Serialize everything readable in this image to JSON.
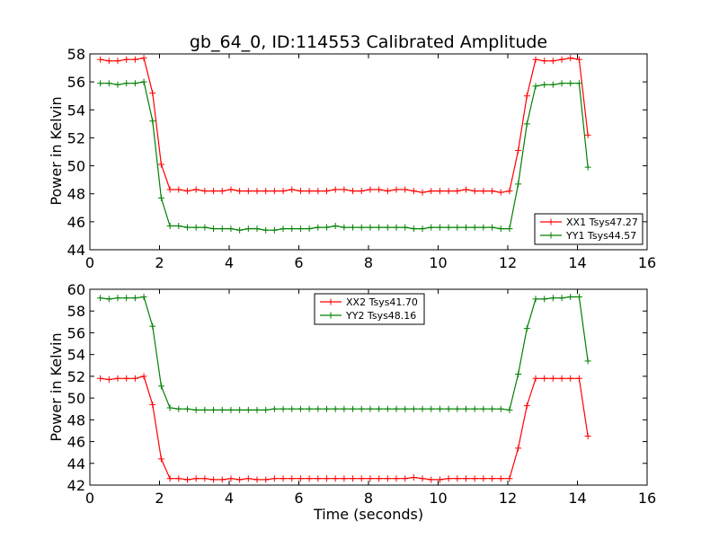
{
  "chart_data": [
    {
      "type": "line",
      "title": "gb_64_0, ID:114553 Calibrated Amplitude",
      "xlabel": "",
      "ylabel": "Power in Kelvin",
      "xlim": [
        0,
        16
      ],
      "ylim": [
        44,
        58
      ],
      "xticks": [
        "0",
        "2",
        "4",
        "6",
        "8",
        "10",
        "12",
        "14",
        "16"
      ],
      "yticks": [
        "44",
        "46",
        "48",
        "50",
        "52",
        "54",
        "56",
        "58"
      ],
      "grid": false,
      "legend_position": "lower-right",
      "x": [
        0.3,
        0.55,
        0.8,
        1.05,
        1.3,
        1.55,
        1.8,
        2.05,
        2.3,
        2.55,
        2.8,
        3.05,
        3.3,
        3.55,
        3.8,
        4.05,
        4.3,
        4.55,
        4.8,
        5.05,
        5.3,
        5.55,
        5.8,
        6.05,
        6.3,
        6.55,
        6.8,
        7.05,
        7.3,
        7.55,
        7.8,
        8.05,
        8.3,
        8.55,
        8.8,
        9.05,
        9.3,
        9.55,
        9.8,
        10.05,
        10.3,
        10.55,
        10.8,
        11.05,
        11.3,
        11.55,
        11.8,
        12.05,
        12.3,
        12.55,
        12.8,
        13.05,
        13.3,
        13.55,
        13.8,
        14.05,
        14.3,
        14.55,
        14.8,
        15.05
      ],
      "series": [
        {
          "name": "XX1 Tsys47.27",
          "color": "#ff0000",
          "values": [
            57.6,
            57.5,
            57.5,
            57.6,
            57.6,
            57.7,
            55.2,
            50.1,
            48.3,
            48.3,
            48.2,
            48.3,
            48.2,
            48.2,
            48.2,
            48.3,
            48.2,
            48.2,
            48.2,
            48.2,
            48.2,
            48.2,
            48.3,
            48.2,
            48.2,
            48.2,
            48.2,
            48.3,
            48.3,
            48.2,
            48.2,
            48.3,
            48.3,
            48.2,
            48.3,
            48.3,
            48.2,
            48.1,
            48.2,
            48.2,
            48.2,
            48.2,
            48.3,
            48.2,
            48.2,
            48.2,
            48.1,
            48.2,
            51.1,
            55.0,
            57.6,
            57.5,
            57.5,
            57.6,
            57.7,
            57.6,
            52.2,
            null,
            null,
            null
          ]
        },
        {
          "name": "YY1 Tsys44.57",
          "color": "#008000",
          "values": [
            55.9,
            55.9,
            55.8,
            55.9,
            55.9,
            56.0,
            53.2,
            47.7,
            45.7,
            45.7,
            45.6,
            45.6,
            45.6,
            45.5,
            45.5,
            45.5,
            45.4,
            45.5,
            45.5,
            45.4,
            45.4,
            45.5,
            45.5,
            45.5,
            45.5,
            45.6,
            45.6,
            45.7,
            45.6,
            45.6,
            45.6,
            45.6,
            45.6,
            45.6,
            45.6,
            45.6,
            45.5,
            45.5,
            45.6,
            45.6,
            45.6,
            45.6,
            45.6,
            45.6,
            45.6,
            45.6,
            45.5,
            45.5,
            48.7,
            53.0,
            55.7,
            55.8,
            55.8,
            55.9,
            55.9,
            55.9,
            49.9,
            null,
            null,
            null
          ]
        }
      ]
    },
    {
      "type": "line",
      "title": "",
      "xlabel": "Time (seconds)",
      "ylabel": "Power in Kelvin",
      "xlim": [
        0,
        16
      ],
      "ylim": [
        42,
        60
      ],
      "xticks": [
        "0",
        "2",
        "4",
        "6",
        "8",
        "10",
        "12",
        "14",
        "16"
      ],
      "yticks": [
        "42",
        "44",
        "46",
        "48",
        "50",
        "52",
        "54",
        "56",
        "58",
        "60"
      ],
      "grid": false,
      "legend_position": "upper-center",
      "x": [
        0.3,
        0.55,
        0.8,
        1.05,
        1.3,
        1.55,
        1.8,
        2.05,
        2.3,
        2.55,
        2.8,
        3.05,
        3.3,
        3.55,
        3.8,
        4.05,
        4.3,
        4.55,
        4.8,
        5.05,
        5.3,
        5.55,
        5.8,
        6.05,
        6.3,
        6.55,
        6.8,
        7.05,
        7.3,
        7.55,
        7.8,
        8.05,
        8.3,
        8.55,
        8.8,
        9.05,
        9.3,
        9.55,
        9.8,
        10.05,
        10.3,
        10.55,
        10.8,
        11.05,
        11.3,
        11.55,
        11.8,
        12.05,
        12.3,
        12.55,
        12.8,
        13.05,
        13.3,
        13.55,
        13.8,
        14.05,
        14.3,
        14.55,
        14.8,
        15.05
      ],
      "series": [
        {
          "name": "XX2 Tsys41.70",
          "color": "#ff0000",
          "values": [
            51.8,
            51.7,
            51.8,
            51.8,
            51.8,
            52.0,
            49.4,
            44.4,
            42.6,
            42.6,
            42.5,
            42.6,
            42.6,
            42.5,
            42.5,
            42.6,
            42.5,
            42.6,
            42.5,
            42.5,
            42.6,
            42.6,
            42.6,
            42.6,
            42.6,
            42.6,
            42.6,
            42.6,
            42.6,
            42.6,
            42.6,
            42.6,
            42.6,
            42.6,
            42.6,
            42.6,
            42.7,
            42.6,
            42.5,
            42.5,
            42.6,
            42.6,
            42.6,
            42.6,
            42.6,
            42.6,
            42.6,
            42.6,
            45.4,
            49.3,
            51.8,
            51.8,
            51.8,
            51.8,
            51.8,
            51.8,
            46.5,
            null,
            null,
            null
          ]
        },
        {
          "name": "YY2 Tsys48.16",
          "color": "#008000",
          "values": [
            59.2,
            59.1,
            59.2,
            59.2,
            59.2,
            59.3,
            56.6,
            51.1,
            49.1,
            49.0,
            49.0,
            48.9,
            48.9,
            48.9,
            48.9,
            48.9,
            48.9,
            48.9,
            48.9,
            48.9,
            49.0,
            49.0,
            49.0,
            49.0,
            49.0,
            49.0,
            49.0,
            49.0,
            49.0,
            49.0,
            49.0,
            49.0,
            49.0,
            49.0,
            49.0,
            49.0,
            49.0,
            49.0,
            49.0,
            49.0,
            49.0,
            49.0,
            49.0,
            49.0,
            49.0,
            49.0,
            49.0,
            48.9,
            52.2,
            56.4,
            59.1,
            59.1,
            59.2,
            59.2,
            59.3,
            59.3,
            53.4,
            null,
            null,
            null
          ]
        }
      ]
    }
  ]
}
